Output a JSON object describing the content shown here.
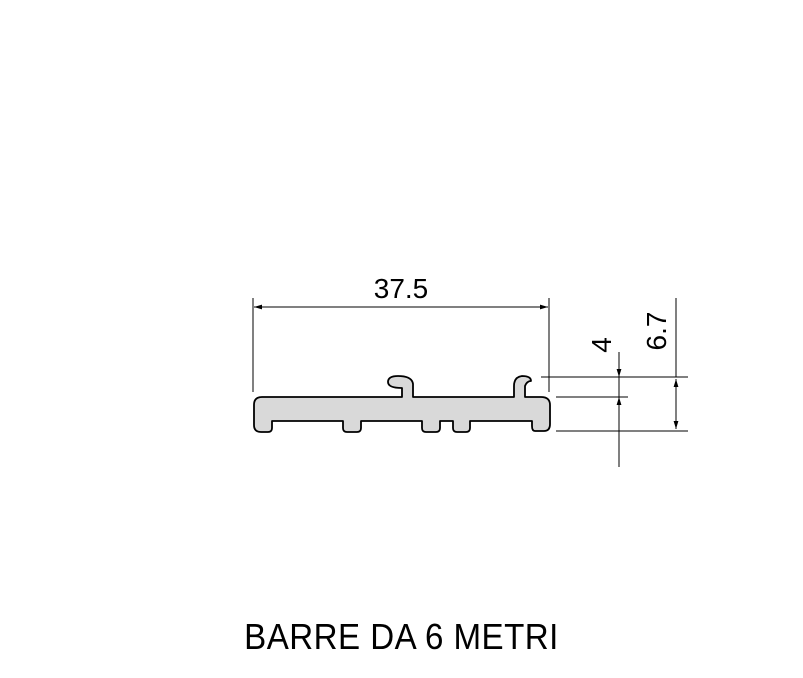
{
  "drawing": {
    "profile_fill": "#d9d9d9",
    "line_color": "#000000",
    "dimensions": {
      "width": "37.5",
      "inner_height": "4",
      "total_height": "6.7"
    }
  },
  "caption": "BARRE DA 6 METRI"
}
